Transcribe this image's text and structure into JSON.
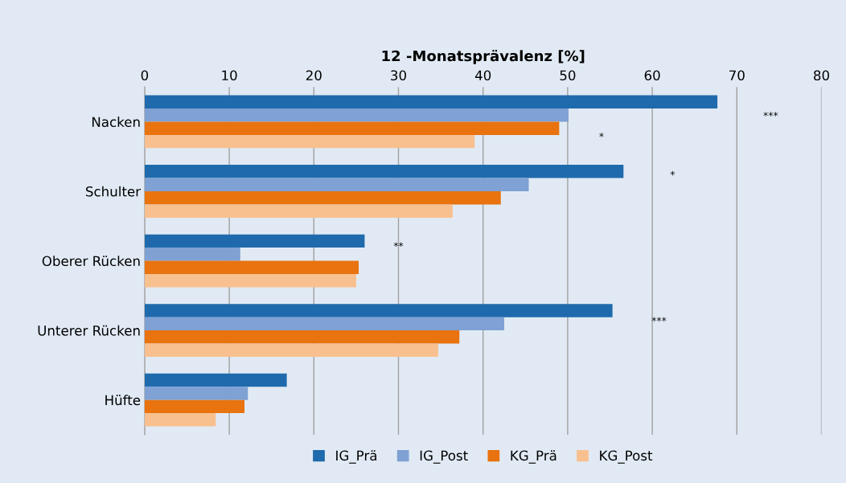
{
  "chart_data": {
    "type": "bar",
    "orientation": "horizontal",
    "xlabel": "12 -Monatsprävalenz [%]",
    "categories": [
      "Nacken",
      "Schulter",
      "Oberer Rücken",
      "Unterer Rücken",
      "Hüfte"
    ],
    "series": [
      {
        "name": "IG_Prä",
        "color": "#1f6aad",
        "values": [
          67.7,
          56.6,
          26.0,
          55.3,
          16.8
        ]
      },
      {
        "name": "IG_Post",
        "color": "#7fa1d3",
        "values": [
          50.1,
          45.4,
          11.3,
          42.5,
          12.2
        ]
      },
      {
        "name": "KG_Prä",
        "color": "#e8730f",
        "values": [
          49.0,
          42.1,
          25.3,
          37.2,
          11.8
        ]
      },
      {
        "name": "KG_Post",
        "color": "#f8c08f",
        "values": [
          39.0,
          36.4,
          25.0,
          34.7,
          8.4
        ]
      }
    ],
    "xlim": [
      0,
      80
    ],
    "xticks": [
      0,
      10,
      20,
      30,
      40,
      50,
      60,
      70,
      80
    ],
    "grid": "x",
    "legend": "bottom",
    "annotations": [
      "***",
      "*",
      "*",
      "**",
      "***"
    ]
  }
}
